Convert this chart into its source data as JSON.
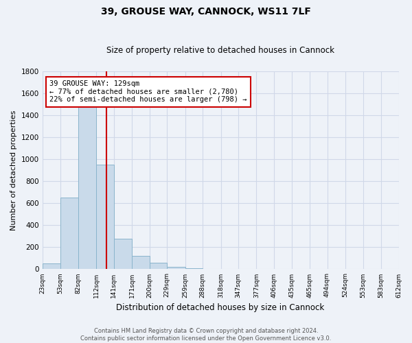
{
  "title1": "39, GROUSE WAY, CANNOCK, WS11 7LF",
  "title2": "Size of property relative to detached houses in Cannock",
  "xlabel": "Distribution of detached houses by size in Cannock",
  "ylabel": "Number of detached properties",
  "bar_edges": [
    23,
    53,
    82,
    112,
    141,
    171,
    200,
    229,
    259,
    288,
    318,
    347,
    377,
    406,
    435,
    465,
    494,
    524,
    553,
    583,
    612
  ],
  "bar_heights": [
    50,
    650,
    1500,
    950,
    280,
    120,
    60,
    20,
    10,
    5,
    3,
    2,
    1,
    1,
    1,
    1,
    0,
    0,
    0,
    0
  ],
  "bar_color": "#c9daea",
  "bar_edgecolor": "#8ab4cc",
  "grid_color": "#d0d8e8",
  "property_size": 129,
  "annotation_line1": "39 GROUSE WAY: 129sqm",
  "annotation_line2": "← 77% of detached houses are smaller (2,780)",
  "annotation_line3": "22% of semi-detached houses are larger (798) →",
  "annotation_box_color": "#ffffff",
  "annotation_box_edgecolor": "#cc0000",
  "vline_color": "#cc0000",
  "ylim": [
    0,
    1800
  ],
  "yticks": [
    0,
    200,
    400,
    600,
    800,
    1000,
    1200,
    1400,
    1600,
    1800
  ],
  "footer1": "Contains HM Land Registry data © Crown copyright and database right 2024.",
  "footer2": "Contains public sector information licensed under the Open Government Licence v3.0.",
  "bg_color": "#eef2f8"
}
